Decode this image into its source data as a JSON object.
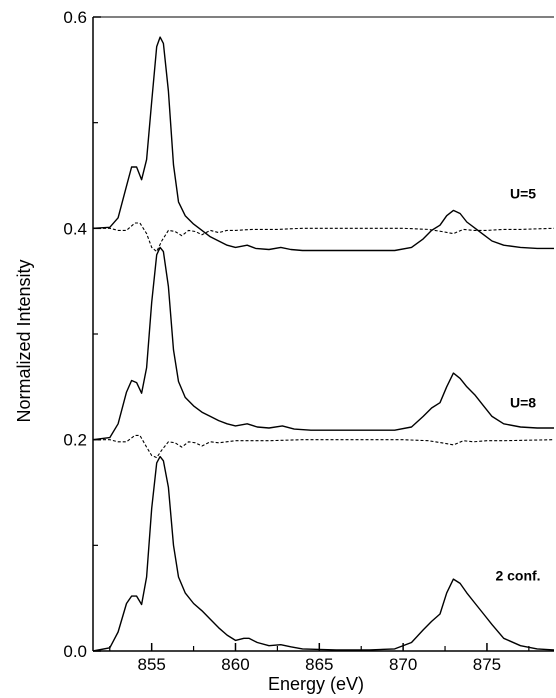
{
  "chart_data": {
    "type": "line",
    "xlabel": "Energy (eV)",
    "ylabel": "Normalized Intensity",
    "xlim": [
      851.5,
      879
    ],
    "ylim": [
      0.0,
      0.6
    ],
    "xticks": [
      855,
      860,
      865,
      870,
      875
    ],
    "yticks_labeled": [
      0.0,
      0.2,
      0.4,
      0.6
    ],
    "yticks_minor": [
      0.1,
      0.3,
      0.5
    ],
    "grid": false,
    "series": [
      {
        "label": "U=5",
        "style": "solid",
        "points": [
          [
            851.5,
            0.4
          ],
          [
            852.5,
            0.401
          ],
          [
            853.0,
            0.41
          ],
          [
            853.5,
            0.44
          ],
          [
            853.8,
            0.458
          ],
          [
            854.1,
            0.458
          ],
          [
            854.4,
            0.446
          ],
          [
            854.7,
            0.465
          ],
          [
            855.0,
            0.52
          ],
          [
            855.3,
            0.572
          ],
          [
            855.5,
            0.581
          ],
          [
            855.7,
            0.575
          ],
          [
            856.0,
            0.53
          ],
          [
            856.3,
            0.46
          ],
          [
            856.6,
            0.425
          ],
          [
            857.0,
            0.412
          ],
          [
            857.5,
            0.404
          ],
          [
            858.0,
            0.398
          ],
          [
            858.5,
            0.392
          ],
          [
            859.0,
            0.388
          ],
          [
            859.5,
            0.384
          ],
          [
            860.0,
            0.382
          ],
          [
            860.7,
            0.384
          ],
          [
            861.2,
            0.381
          ],
          [
            862.0,
            0.38
          ],
          [
            862.7,
            0.382
          ],
          [
            863.3,
            0.38
          ],
          [
            864.0,
            0.379
          ],
          [
            866.0,
            0.379
          ],
          [
            868.0,
            0.379
          ],
          [
            869.5,
            0.379
          ],
          [
            870.5,
            0.382
          ],
          [
            871.2,
            0.39
          ],
          [
            871.7,
            0.398
          ],
          [
            872.2,
            0.403
          ],
          [
            872.6,
            0.412
          ],
          [
            873.0,
            0.417
          ],
          [
            873.4,
            0.414
          ],
          [
            873.8,
            0.406
          ],
          [
            874.3,
            0.4
          ],
          [
            874.8,
            0.394
          ],
          [
            875.3,
            0.388
          ],
          [
            876.0,
            0.384
          ],
          [
            877.0,
            0.382
          ],
          [
            878.0,
            0.381
          ],
          [
            879.0,
            0.381
          ]
        ]
      },
      {
        "label": "",
        "style": "dashed",
        "points": [
          [
            851.5,
            0.4
          ],
          [
            852.5,
            0.4
          ],
          [
            853.0,
            0.398
          ],
          [
            853.5,
            0.398
          ],
          [
            854.0,
            0.405
          ],
          [
            854.3,
            0.405
          ],
          [
            854.7,
            0.395
          ],
          [
            855.0,
            0.382
          ],
          [
            855.3,
            0.378
          ],
          [
            855.6,
            0.388
          ],
          [
            856.0,
            0.398
          ],
          [
            856.4,
            0.397
          ],
          [
            856.8,
            0.393
          ],
          [
            857.2,
            0.398
          ],
          [
            857.6,
            0.397
          ],
          [
            858.0,
            0.394
          ],
          [
            858.5,
            0.398
          ],
          [
            859.0,
            0.396
          ],
          [
            859.5,
            0.398
          ],
          [
            860.0,
            0.398
          ],
          [
            861.0,
            0.399
          ],
          [
            862.5,
            0.399
          ],
          [
            864.0,
            0.4
          ],
          [
            866.0,
            0.4
          ],
          [
            870.0,
            0.4
          ],
          [
            871.5,
            0.399
          ],
          [
            872.3,
            0.397
          ],
          [
            873.0,
            0.395
          ],
          [
            873.6,
            0.399
          ],
          [
            874.2,
            0.398
          ],
          [
            875.0,
            0.398
          ],
          [
            876.0,
            0.399
          ],
          [
            877.0,
            0.399
          ],
          [
            879.0,
            0.4
          ]
        ]
      },
      {
        "label": "U=8",
        "style": "solid",
        "points": [
          [
            851.5,
            0.2
          ],
          [
            852.5,
            0.202
          ],
          [
            853.0,
            0.215
          ],
          [
            853.5,
            0.245
          ],
          [
            853.8,
            0.256
          ],
          [
            854.1,
            0.254
          ],
          [
            854.4,
            0.244
          ],
          [
            854.7,
            0.268
          ],
          [
            855.0,
            0.33
          ],
          [
            855.3,
            0.375
          ],
          [
            855.5,
            0.382
          ],
          [
            855.7,
            0.378
          ],
          [
            856.0,
            0.345
          ],
          [
            856.3,
            0.285
          ],
          [
            856.6,
            0.255
          ],
          [
            857.0,
            0.24
          ],
          [
            857.5,
            0.232
          ],
          [
            858.0,
            0.226
          ],
          [
            858.5,
            0.222
          ],
          [
            859.0,
            0.218
          ],
          [
            859.5,
            0.215
          ],
          [
            860.0,
            0.213
          ],
          [
            860.7,
            0.215
          ],
          [
            861.3,
            0.212
          ],
          [
            862.0,
            0.211
          ],
          [
            862.8,
            0.213
          ],
          [
            863.5,
            0.21
          ],
          [
            864.5,
            0.209
          ],
          [
            866.0,
            0.209
          ],
          [
            868.0,
            0.209
          ],
          [
            869.5,
            0.209
          ],
          [
            870.5,
            0.212
          ],
          [
            871.2,
            0.222
          ],
          [
            871.7,
            0.23
          ],
          [
            872.2,
            0.235
          ],
          [
            872.6,
            0.25
          ],
          [
            873.0,
            0.263
          ],
          [
            873.4,
            0.258
          ],
          [
            873.8,
            0.25
          ],
          [
            874.3,
            0.242
          ],
          [
            874.8,
            0.232
          ],
          [
            875.3,
            0.222
          ],
          [
            876.0,
            0.215
          ],
          [
            877.0,
            0.212
          ],
          [
            878.0,
            0.211
          ],
          [
            879.0,
            0.211
          ]
        ]
      },
      {
        "label": "",
        "style": "dashed",
        "points": [
          [
            851.5,
            0.2
          ],
          [
            852.5,
            0.2
          ],
          [
            853.0,
            0.198
          ],
          [
            853.5,
            0.198
          ],
          [
            854.0,
            0.204
          ],
          [
            854.3,
            0.204
          ],
          [
            854.7,
            0.193
          ],
          [
            855.0,
            0.185
          ],
          [
            855.3,
            0.183
          ],
          [
            855.6,
            0.19
          ],
          [
            856.0,
            0.198
          ],
          [
            856.4,
            0.197
          ],
          [
            856.8,
            0.193
          ],
          [
            857.2,
            0.198
          ],
          [
            857.6,
            0.197
          ],
          [
            858.0,
            0.194
          ],
          [
            858.5,
            0.198
          ],
          [
            859.0,
            0.197
          ],
          [
            860.0,
            0.199
          ],
          [
            862.0,
            0.199
          ],
          [
            864.0,
            0.2
          ],
          [
            867.0,
            0.2
          ],
          [
            870.0,
            0.2
          ],
          [
            871.5,
            0.199
          ],
          [
            872.3,
            0.197
          ],
          [
            873.0,
            0.195
          ],
          [
            873.6,
            0.199
          ],
          [
            874.2,
            0.198
          ],
          [
            875.0,
            0.199
          ],
          [
            876.0,
            0.199
          ],
          [
            879.0,
            0.2
          ]
        ]
      },
      {
        "label": "2 conf.",
        "style": "solid",
        "points": [
          [
            851.5,
            0.0
          ],
          [
            852.5,
            0.003
          ],
          [
            853.0,
            0.018
          ],
          [
            853.5,
            0.045
          ],
          [
            853.8,
            0.052
          ],
          [
            854.1,
            0.052
          ],
          [
            854.4,
            0.044
          ],
          [
            854.7,
            0.07
          ],
          [
            855.0,
            0.135
          ],
          [
            855.3,
            0.178
          ],
          [
            855.5,
            0.184
          ],
          [
            855.7,
            0.18
          ],
          [
            856.0,
            0.155
          ],
          [
            856.3,
            0.1
          ],
          [
            856.6,
            0.07
          ],
          [
            857.0,
            0.055
          ],
          [
            857.5,
            0.045
          ],
          [
            858.0,
            0.038
          ],
          [
            858.5,
            0.03
          ],
          [
            859.0,
            0.022
          ],
          [
            859.5,
            0.015
          ],
          [
            860.0,
            0.01
          ],
          [
            860.5,
            0.012
          ],
          [
            860.8,
            0.012
          ],
          [
            861.3,
            0.008
          ],
          [
            862.0,
            0.005
          ],
          [
            862.7,
            0.006
          ],
          [
            863.3,
            0.004
          ],
          [
            864.0,
            0.002
          ],
          [
            866.0,
            0.001
          ],
          [
            868.0,
            0.001
          ],
          [
            869.5,
            0.002
          ],
          [
            870.5,
            0.008
          ],
          [
            871.2,
            0.02
          ],
          [
            871.7,
            0.028
          ],
          [
            872.2,
            0.035
          ],
          [
            872.6,
            0.055
          ],
          [
            873.0,
            0.068
          ],
          [
            873.4,
            0.064
          ],
          [
            873.8,
            0.055
          ],
          [
            874.3,
            0.045
          ],
          [
            874.8,
            0.035
          ],
          [
            875.3,
            0.025
          ],
          [
            876.0,
            0.012
          ],
          [
            877.0,
            0.005
          ],
          [
            878.0,
            0.002
          ],
          [
            879.0,
            0.001
          ]
        ]
      }
    ]
  }
}
